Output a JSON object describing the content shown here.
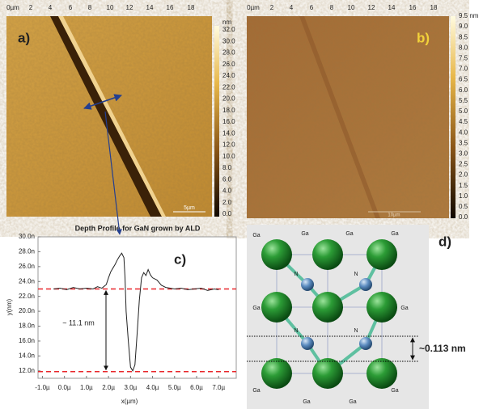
{
  "panels": {
    "a": {
      "label": "a)",
      "top_axis": [
        "0µm",
        "2",
        "4",
        "6",
        "8",
        "10",
        "12",
        "14",
        "16",
        "18"
      ],
      "colorbar_labels": [
        "nm",
        "32.0",
        "30.0",
        "28.0",
        "26.0",
        "24.0",
        "22.0",
        "20.0",
        "18.0",
        "16.0",
        "14.0",
        "12.0",
        "10.0",
        "8.0",
        "6.0",
        "4.0",
        "2.0",
        "0.0"
      ],
      "scale_bar": "5µm"
    },
    "b": {
      "label": "b)",
      "top_axis": [
        "0µm",
        "2",
        "4",
        "6",
        "8",
        "10",
        "12",
        "14",
        "16",
        "18"
      ],
      "colorbar_labels": [
        "9.5 nm",
        "9.0",
        "8.5",
        "8.0",
        "7.5",
        "7.0",
        "6.5",
        "6.0",
        "5.5",
        "5.0",
        "4.5",
        "4.0",
        "3.5",
        "3.0",
        "2.5",
        "2.0",
        "1.5",
        "1.0",
        "0.5",
        "0.0"
      ],
      "scale_bar": "10µm"
    }
  },
  "chart_data": {
    "type": "line",
    "title": "Depth Profile for GaN grown by ALD",
    "x_label": "x(µm)",
    "y_label": "y(nm)",
    "panel_label": "c)",
    "annotation": "~ 11.1 nm",
    "x": [
      -0.5,
      -0.2,
      0.1,
      0.4,
      0.7,
      1.0,
      1.3,
      1.5,
      1.7,
      1.9,
      2.0,
      2.1,
      2.2,
      2.3,
      2.4,
      2.5,
      2.6,
      2.7,
      2.75,
      2.8,
      2.9,
      3.0,
      3.1,
      3.2,
      3.3,
      3.4,
      3.5,
      3.6,
      3.7,
      3.8,
      3.9,
      4.0,
      4.2,
      4.4,
      4.6,
      4.8,
      5.0,
      5.3,
      5.6,
      5.9,
      6.2,
      6.5,
      6.8,
      7.0
    ],
    "series": [
      {
        "color": "#222222",
        "values": [
          23.0,
          23.1,
          22.9,
          23.2,
          23.0,
          23.1,
          23.0,
          23.3,
          23.1,
          23.6,
          24.5,
          25.3,
          25.8,
          26.3,
          26.9,
          27.4,
          27.8,
          27.2,
          24.5,
          20.0,
          16.0,
          12.5,
          12.0,
          12.8,
          17.0,
          21.5,
          24.5,
          25.2,
          24.8,
          25.6,
          24.9,
          24.5,
          24.2,
          23.5,
          23.2,
          23.1,
          23.0,
          23.1,
          22.9,
          23.0,
          23.1,
          22.8,
          23.0,
          22.9
        ]
      }
    ],
    "reference_lines": [
      23.0,
      11.9
    ],
    "reference_color": "#e8262a",
    "xlim": [
      -1.2,
      7.8
    ],
    "ylim": [
      11,
      30
    ],
    "xticks": [
      {
        "value": -1,
        "label": "-1.0µ"
      },
      {
        "value": 0,
        "label": "0.0µ"
      },
      {
        "value": 1,
        "label": "1.0µ"
      },
      {
        "value": 2,
        "label": "2.0µ"
      },
      {
        "value": 3,
        "label": "3.0µ"
      },
      {
        "value": 4,
        "label": "4.0µ"
      },
      {
        "value": 5,
        "label": "5.0µ"
      },
      {
        "value": 6,
        "label": "6.0µ"
      },
      {
        "value": 7,
        "label": "7.0µ"
      }
    ],
    "yticks": [
      {
        "value": 12,
        "label": "12.0n"
      },
      {
        "value": 14,
        "label": "14.0n"
      },
      {
        "value": 16,
        "label": "16.0n"
      },
      {
        "value": 18,
        "label": "18.0n"
      },
      {
        "value": 20,
        "label": "20.0n"
      },
      {
        "value": 22,
        "label": "22.0n"
      },
      {
        "value": 24,
        "label": "24.0n"
      },
      {
        "value": 26,
        "label": "26.0n"
      },
      {
        "value": 28,
        "label": "28.0n"
      },
      {
        "value": 30,
        "label": "30.0n"
      }
    ]
  },
  "diagram": {
    "label": "d)",
    "spacing_label": "~0.113 nm",
    "atom_labels": [
      "Ga",
      "Ga",
      "Ga",
      "Ga",
      "Ga",
      "Ga",
      "Ga",
      "Ga",
      "Ga",
      "Ga",
      "N",
      "N",
      "N",
      "N"
    ]
  }
}
